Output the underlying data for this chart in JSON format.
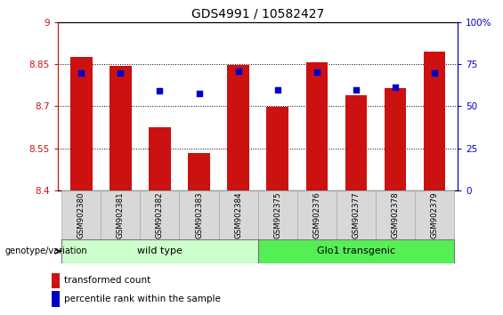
{
  "title": "GDS4991 / 10582427",
  "categories": [
    "GSM902380",
    "GSM902381",
    "GSM902382",
    "GSM902383",
    "GSM902384",
    "GSM902375",
    "GSM902376",
    "GSM902377",
    "GSM902378",
    "GSM902379"
  ],
  "bar_values": [
    8.875,
    8.843,
    8.625,
    8.535,
    8.848,
    8.698,
    8.858,
    8.738,
    8.765,
    8.895
  ],
  "dot_values": [
    8.82,
    8.82,
    8.755,
    8.745,
    8.825,
    8.76,
    8.823,
    8.76,
    8.768,
    8.82
  ],
  "ylim_left": [
    8.4,
    9.0
  ],
  "ylim_right": [
    0,
    100
  ],
  "yticks_left": [
    8.4,
    8.55,
    8.7,
    8.85,
    9.0
  ],
  "ytick_labels_left": [
    "8.4",
    "8.55",
    "8.7",
    "8.85",
    "9"
  ],
  "yticks_right": [
    0,
    25,
    50,
    75,
    100
  ],
  "ytick_labels_right": [
    "0",
    "25",
    "50",
    "75",
    "100%"
  ],
  "bar_color": "#cc1111",
  "dot_color": "#0000cc",
  "bar_bottom": 8.4,
  "wild_type_label": "wild type",
  "transgenic_label": "Glo1 transgenic",
  "wild_type_color": "#ccffcc",
  "transgenic_color": "#55ee55",
  "legend_bar_label": "transformed count",
  "legend_dot_label": "percentile rank within the sample",
  "xlabel": "genotype/variation",
  "title_fontsize": 10,
  "tick_fontsize": 7.5,
  "left_tick_color": "#cc1111",
  "right_tick_color": "#0000cc",
  "grid_lines": [
    8.55,
    8.7,
    8.85
  ],
  "dot_size": 22
}
